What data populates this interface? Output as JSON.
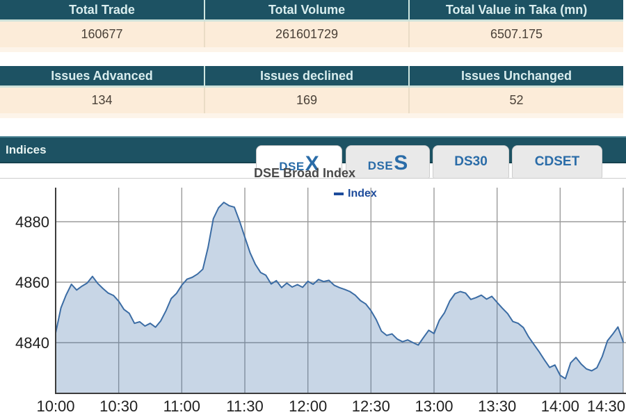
{
  "tables": [
    {
      "headers": [
        "Total Trade",
        "Total Volume",
        "Total Value in Taka (mn)"
      ],
      "values": [
        "160677",
        "261601729",
        "6507.175"
      ]
    },
    {
      "headers": [
        "Issues Advanced",
        "Issues declined",
        "Issues Unchanged"
      ],
      "values": [
        "134",
        "169",
        "52"
      ]
    }
  ],
  "indices": {
    "label": "Indices"
  },
  "tabs": [
    {
      "name": "dsex",
      "prefix": "DSE",
      "suffix": "X",
      "active": true
    },
    {
      "name": "dses",
      "prefix": "DSE",
      "suffix": "S",
      "active": false
    },
    {
      "name": "ds30",
      "label": "DS30",
      "active": false
    },
    {
      "name": "cdset",
      "label": "CDSET",
      "active": false
    }
  ],
  "theme": {
    "teal": "#1d5263",
    "header_text": "#d9edee",
    "cream_row": "#fcecd9",
    "tab_blue": "#2a6ca8",
    "legend_blue": "#1d4b9b"
  },
  "chart_data": {
    "type": "area",
    "title": "DSE Broad Index",
    "legend": "Index",
    "legend_position": "top",
    "grid": true,
    "xlabel": "",
    "ylabel": "",
    "xticks": [
      "10:00",
      "10:30",
      "11:00",
      "11:30",
      "12:00",
      "12:30",
      "13:00",
      "13:30",
      "14:00",
      "14:30"
    ],
    "yticks": [
      4840,
      4860,
      4880
    ],
    "ylim": [
      4823,
      4891
    ],
    "x_range_minutes": [
      0,
      270
    ],
    "colors": {
      "line": "#3b6ca4",
      "fill": "rgba(59,108,164,0.28)",
      "grid": "#9b9b9b",
      "axis": "#3c3c3c"
    },
    "series": [
      {
        "name": "Index",
        "step_minutes": 2.5,
        "values": [
          4843.2,
          4851.5,
          4855.8,
          4859.3,
          4857.4,
          4858.7,
          4859.7,
          4861.9,
          4859.6,
          4857.9,
          4856.4,
          4855.6,
          4853.7,
          4851.0,
          4849.7,
          4846.4,
          4846.9,
          4845.5,
          4846.4,
          4845.1,
          4847.2,
          4850.6,
          4854.6,
          4856.3,
          4859.0,
          4861.0,
          4861.6,
          4862.7,
          4864.3,
          4871.5,
          4881.0,
          4884.6,
          4886.4,
          4885.3,
          4884.8,
          4880.2,
          4874.9,
          4869.7,
          4865.9,
          4863.2,
          4862.3,
          4859.4,
          4860.5,
          4858.2,
          4859.7,
          4858.4,
          4859.2,
          4858.3,
          4860.3,
          4859.3,
          4860.9,
          4860.2,
          4860.6,
          4859.0,
          4858.2,
          4857.6,
          4856.9,
          4855.7,
          4853.9,
          4852.8,
          4850.6,
          4847.6,
          4843.8,
          4842.4,
          4842.9,
          4841.2,
          4840.3,
          4840.9,
          4840.0,
          4839.2,
          4841.7,
          4844.1,
          4843.0,
          4847.4,
          4849.9,
          4853.8,
          4856.2,
          4856.9,
          4856.4,
          4854.3,
          4854.9,
          4855.7,
          4854.4,
          4855.3,
          4853.3,
          4851.4,
          4849.6,
          4847.0,
          4846.4,
          4845.0,
          4841.9,
          4839.4,
          4837.0,
          4834.3,
          4831.8,
          4832.6,
          4829.2,
          4828.1,
          4833.3,
          4835.1,
          4832.9,
          4831.3,
          4830.7,
          4831.7,
          4835.4,
          4840.6,
          4842.8,
          4845.2,
          4840.2
        ]
      }
    ]
  }
}
